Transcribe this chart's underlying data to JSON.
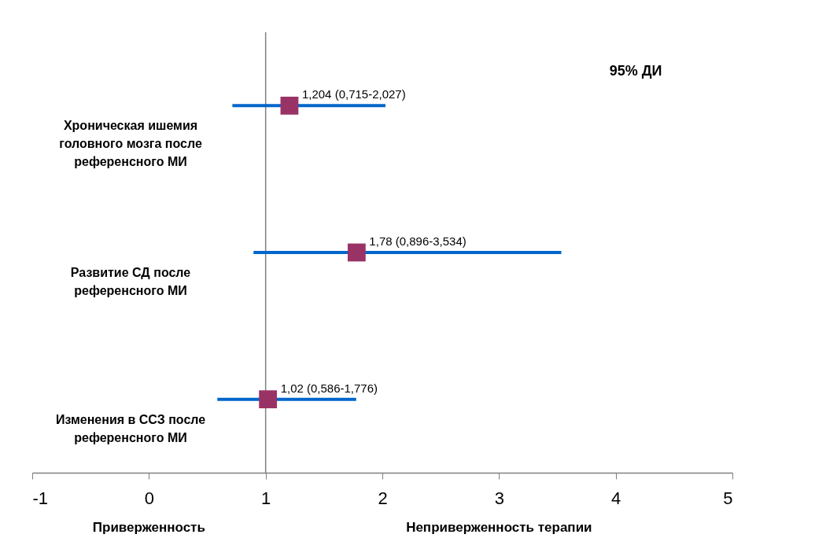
{
  "chart_data": {
    "type": "scatter",
    "orientation": "horizontal",
    "title": "95% ДИ",
    "categories": [
      "Хроническая ишемия головного мозга после референсного МИ",
      "Развитие СД после референсного МИ",
      "Изменения в ССЗ после референсного МИ"
    ],
    "series": [
      {
        "color": "#0066cc",
        "colors": [
          "#993366",
          "#993366",
          "#993366"
        ],
        "values": [
          1.204,
          1.78,
          1.02
        ],
        "errors": [
          [
            0.715,
            2.027
          ],
          [
            0.896,
            3.534
          ],
          [
            0.586,
            1.776
          ]
        ],
        "value_labels": [
          "1,204 (0,715-2,027)",
          "1,78 (0,896-3,534)",
          "1,02 (0,586-1,776)"
        ]
      }
    ],
    "marker": "square",
    "xlim": [
      -1,
      5
    ],
    "xticks": [
      -1,
      0,
      1,
      2,
      3,
      4,
      5
    ],
    "ref_lines": [
      {
        "axis": "x",
        "value": 1,
        "color": "#808080"
      }
    ],
    "annotations": [
      "Приверженность",
      "Неприверженность терапии"
    ],
    "grid": false
  }
}
